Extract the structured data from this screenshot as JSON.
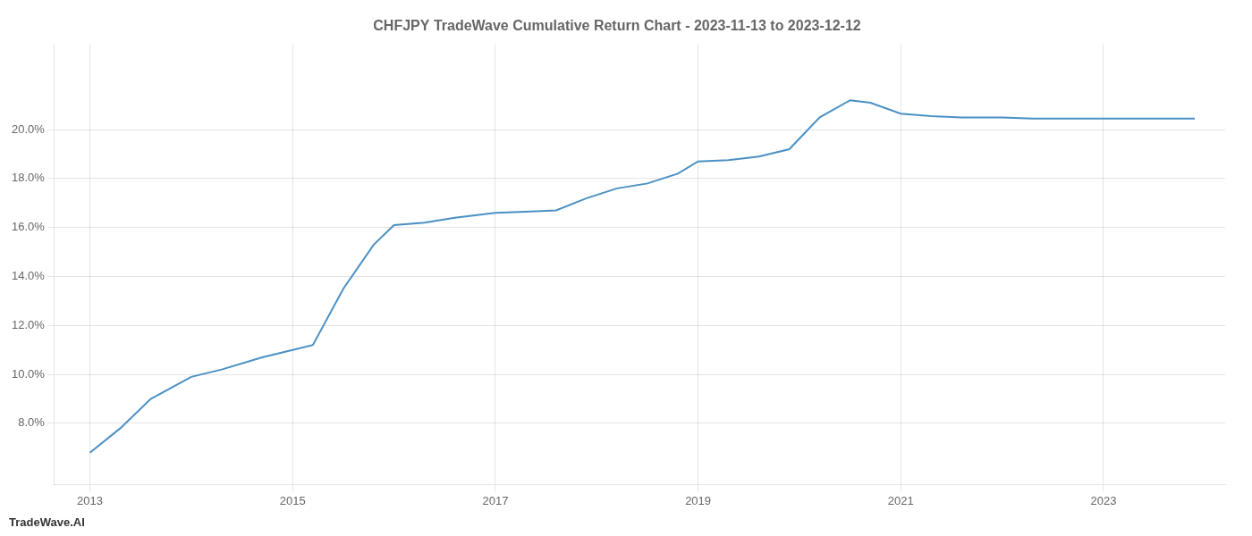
{
  "chart_data": {
    "type": "line",
    "title": "CHFJPY TradeWave Cumulative Return Chart - 2023-11-13 to 2023-12-12",
    "annotations": [
      "TradeWave.AI"
    ],
    "x": [
      2013.0,
      2013.3,
      2013.6,
      2014.0,
      2014.3,
      2014.7,
      2015.0,
      2015.2,
      2015.5,
      2015.8,
      2016.0,
      2016.3,
      2016.6,
      2017.0,
      2017.3,
      2017.6,
      2017.9,
      2018.2,
      2018.5,
      2018.8,
      2019.0,
      2019.3,
      2019.6,
      2019.9,
      2020.2,
      2020.5,
      2020.7,
      2021.0,
      2021.3,
      2021.6,
      2022.0,
      2022.3,
      2022.7,
      2023.0,
      2023.5,
      2023.9
    ],
    "values": [
      6.8,
      7.8,
      9.0,
      9.9,
      10.2,
      10.7,
      11.0,
      11.2,
      13.5,
      15.3,
      16.1,
      16.2,
      16.4,
      16.6,
      16.65,
      16.7,
      17.2,
      17.6,
      17.8,
      18.2,
      18.7,
      18.75,
      18.9,
      19.2,
      20.5,
      21.2,
      21.1,
      20.65,
      20.55,
      20.5,
      20.5,
      20.45,
      20.45,
      20.45,
      20.45,
      20.45
    ],
    "color": "#4a90c4",
    "xlim": [
      2012.65,
      2024.2
    ],
    "xticks": [
      2013,
      2015,
      2017,
      2019,
      2021,
      2023
    ],
    "ylim": [
      5.5,
      23.5
    ],
    "yticks": [
      {
        "value": 8.0,
        "label": "8.0%"
      },
      {
        "value": 10.0,
        "label": "10.0%"
      },
      {
        "value": 12.0,
        "label": "12.0%"
      },
      {
        "value": 14.0,
        "label": "14.0%"
      },
      {
        "value": 16.0,
        "label": "16.0%"
      },
      {
        "value": 18.0,
        "label": "18.0%"
      },
      {
        "value": 20.0,
        "label": "20.0%"
      }
    ],
    "grid": true
  }
}
